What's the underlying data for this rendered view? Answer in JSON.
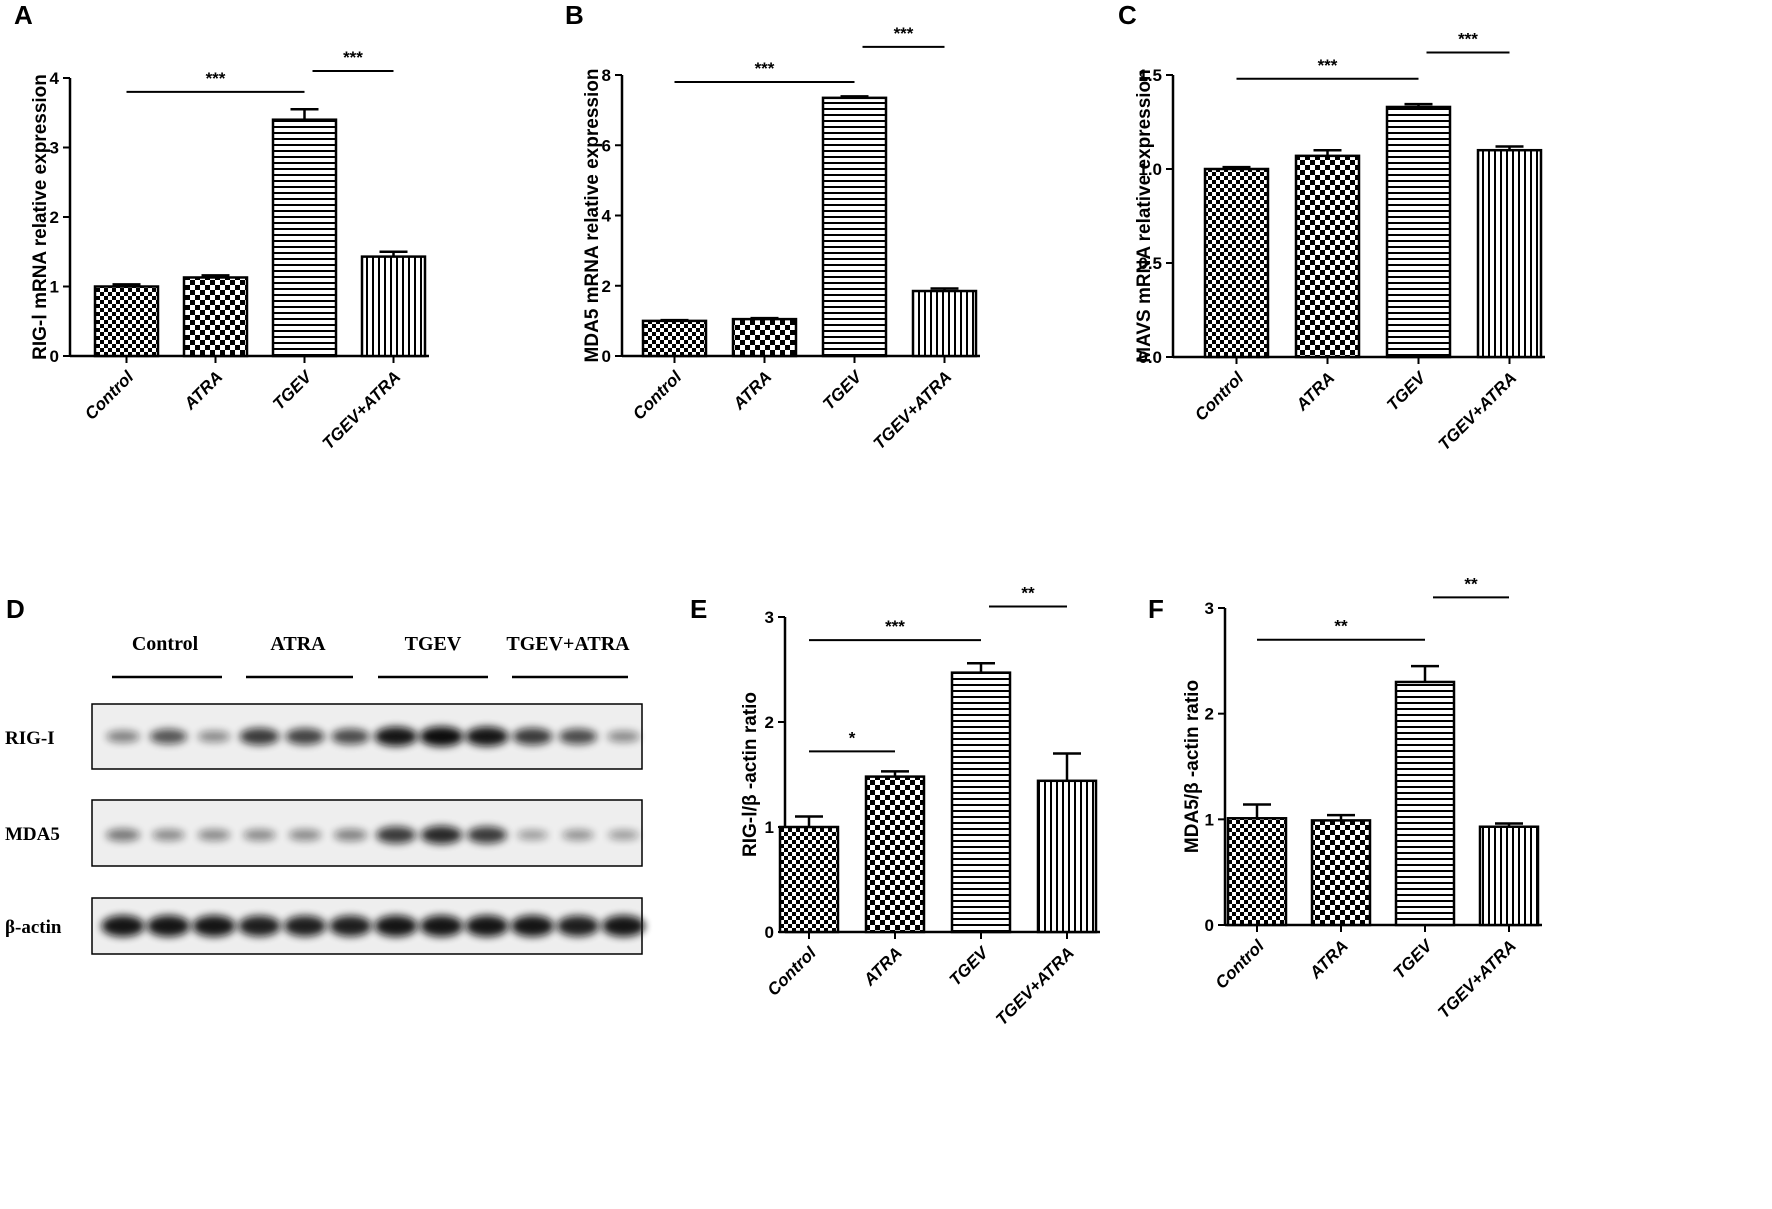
{
  "figure": {
    "panel_letters": [
      "A",
      "B",
      "C",
      "D",
      "E",
      "F"
    ],
    "fill_patterns": [
      "checker-fine",
      "checker-coarse",
      "horizontal-lines",
      "vertical-lines"
    ],
    "colors": {
      "ink": "#000000",
      "background": "#ffffff",
      "blot_background": "#eeeeee",
      "band": "#111111"
    }
  },
  "chart_data": [
    {
      "panel": "A",
      "type": "bar",
      "categories": [
        "Control",
        "ATRA",
        "TGEV",
        "TGEV+ATRA"
      ],
      "values": [
        1.0,
        1.13,
        3.4,
        1.43
      ],
      "errors": [
        0.03,
        0.03,
        0.15,
        0.07
      ],
      "ylabel": "RIG-Ⅰ mRNA relative expression",
      "ylim": [
        0,
        4
      ],
      "yticks": [
        0,
        1,
        2,
        3,
        4
      ],
      "ytick_labels": [
        "0",
        "1",
        "2",
        "3",
        "4"
      ],
      "significance": [
        {
          "from": 0,
          "to": 2,
          "label": "***",
          "y": 3.8
        },
        {
          "from": 2,
          "to": 3,
          "label": "***",
          "y": 4.1
        }
      ]
    },
    {
      "panel": "B",
      "type": "bar",
      "categories": [
        "Control",
        "ATRA",
        "TGEV",
        "TGEV+ATRA"
      ],
      "values": [
        1.0,
        1.05,
        7.35,
        1.85
      ],
      "errors": [
        0.02,
        0.03,
        0.04,
        0.07
      ],
      "ylabel": "MDA5 mRNA relative expression",
      "ylim": [
        0,
        8
      ],
      "yticks": [
        0,
        2,
        4,
        6,
        8
      ],
      "ytick_labels": [
        "0",
        "2",
        "4",
        "6",
        "8"
      ],
      "significance": [
        {
          "from": 0,
          "to": 2,
          "label": "***",
          "y": 7.8
        },
        {
          "from": 2,
          "to": 3,
          "label": "***",
          "y": 8.8
        }
      ]
    },
    {
      "panel": "C",
      "type": "bar",
      "categories": [
        "Control",
        "ATRA",
        "TGEV",
        "TGEV+ATRA"
      ],
      "values": [
        1.0,
        1.07,
        1.33,
        1.1
      ],
      "errors": [
        0.01,
        0.03,
        0.015,
        0.02
      ],
      "ylabel": "MAVS mRNA relative expression",
      "ylim": [
        0,
        1.5
      ],
      "yticks": [
        0,
        0.5,
        1.0,
        1.5
      ],
      "ytick_labels": [
        "0.0",
        "0.5",
        "1.0",
        "1.5"
      ],
      "significance": [
        {
          "from": 0,
          "to": 2,
          "label": "***",
          "y": 1.48
        },
        {
          "from": 2,
          "to": 3,
          "label": "***",
          "y": 1.62
        }
      ]
    },
    {
      "panel": "E",
      "type": "bar",
      "categories": [
        "Control",
        "ATRA",
        "TGEV",
        "TGEV+ATRA"
      ],
      "values": [
        1.0,
        1.48,
        2.47,
        1.44
      ],
      "errors": [
        0.1,
        0.05,
        0.09,
        0.26
      ],
      "ylabel": "RIG-Ⅰ/β -actin ratio",
      "ylim": [
        0,
        3
      ],
      "yticks": [
        0,
        1,
        2,
        3
      ],
      "ytick_labels": [
        "0",
        "1",
        "2",
        "3"
      ],
      "significance": [
        {
          "from": 0,
          "to": 1,
          "label": "*",
          "y": 1.72
        },
        {
          "from": 0,
          "to": 2,
          "label": "***",
          "y": 2.78
        },
        {
          "from": 2,
          "to": 3,
          "label": "**",
          "y": 3.1
        }
      ]
    },
    {
      "panel": "F",
      "type": "bar",
      "categories": [
        "Control",
        "ATRA",
        "TGEV",
        "TGEV+ATRA"
      ],
      "values": [
        1.01,
        0.99,
        2.3,
        0.93
      ],
      "errors": [
        0.13,
        0.05,
        0.15,
        0.03
      ],
      "ylabel": "MDA5/β -actin ratio",
      "ylim": [
        0,
        3
      ],
      "yticks": [
        0,
        1,
        2,
        3
      ],
      "ytick_labels": [
        "0",
        "1",
        "2",
        "3"
      ],
      "significance": [
        {
          "from": 0,
          "to": 2,
          "label": "**",
          "y": 2.7
        },
        {
          "from": 2,
          "to": 3,
          "label": "**",
          "y": 3.1
        }
      ]
    }
  ],
  "blot": {
    "panel": "D",
    "groups": [
      "Control",
      "ATRA",
      "TGEV",
      "TGEV+ATRA"
    ],
    "rows": [
      {
        "label": "RIG-I",
        "intensities": [
          0.35,
          0.6,
          0.3,
          0.75,
          0.7,
          0.65,
          0.95,
          1.0,
          0.95,
          0.75,
          0.65,
          0.3
        ]
      },
      {
        "label": "MDA5",
        "intensities": [
          0.4,
          0.3,
          0.3,
          0.3,
          0.3,
          0.35,
          0.75,
          0.85,
          0.75,
          0.2,
          0.25,
          0.2
        ]
      },
      {
        "label": "β-actin",
        "intensities": [
          0.95,
          0.95,
          0.95,
          0.9,
          0.9,
          0.9,
          0.95,
          0.95,
          0.95,
          0.95,
          0.9,
          0.95
        ]
      }
    ]
  }
}
